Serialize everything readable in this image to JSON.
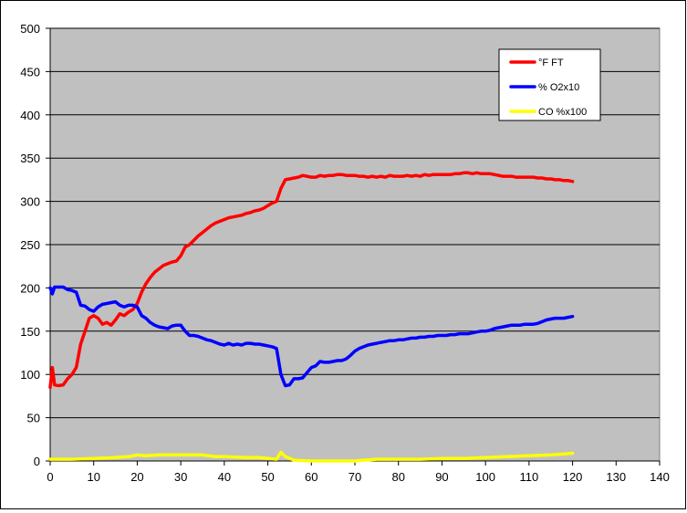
{
  "chart_data": {
    "type": "line",
    "title": "",
    "xlabel": "",
    "ylabel": "",
    "xlim": [
      0,
      140
    ],
    "ylim": [
      0,
      500
    ],
    "x_ticks": [
      0,
      10,
      20,
      30,
      40,
      50,
      60,
      70,
      80,
      90,
      100,
      110,
      120,
      130,
      140
    ],
    "y_ticks": [
      0,
      50,
      100,
      150,
      200,
      250,
      300,
      350,
      400,
      450,
      500
    ],
    "grid": "horizontal",
    "plot_background": "#c0c0c0",
    "legend_position": "top-right",
    "series": [
      {
        "name": "°F FT",
        "color": "#ff0000",
        "points": [
          [
            0,
            85
          ],
          [
            0.5,
            108
          ],
          [
            1,
            88
          ],
          [
            2,
            87
          ],
          [
            3,
            88
          ],
          [
            4,
            95
          ],
          [
            5,
            100
          ],
          [
            6,
            108
          ],
          [
            7,
            135
          ],
          [
            8,
            150
          ],
          [
            9,
            165
          ],
          [
            10,
            168
          ],
          [
            11,
            165
          ],
          [
            12,
            158
          ],
          [
            13,
            160
          ],
          [
            14,
            157
          ],
          [
            15,
            163
          ],
          [
            16,
            170
          ],
          [
            17,
            168
          ],
          [
            18,
            172
          ],
          [
            19,
            175
          ],
          [
            20,
            182
          ],
          [
            21,
            195
          ],
          [
            22,
            205
          ],
          [
            23,
            212
          ],
          [
            24,
            218
          ],
          [
            25,
            222
          ],
          [
            26,
            226
          ],
          [
            27,
            228
          ],
          [
            28,
            230
          ],
          [
            29,
            231
          ],
          [
            30,
            237
          ],
          [
            31,
            247
          ],
          [
            32,
            250
          ],
          [
            33,
            255
          ],
          [
            34,
            260
          ],
          [
            35,
            264
          ],
          [
            36,
            268
          ],
          [
            37,
            272
          ],
          [
            38,
            275
          ],
          [
            39,
            277
          ],
          [
            40,
            279
          ],
          [
            41,
            281
          ],
          [
            42,
            282
          ],
          [
            43,
            283
          ],
          [
            44,
            284
          ],
          [
            45,
            286
          ],
          [
            46,
            287
          ],
          [
            47,
            289
          ],
          [
            48,
            290
          ],
          [
            49,
            292
          ],
          [
            50,
            295
          ],
          [
            51,
            298
          ],
          [
            52,
            300
          ],
          [
            53,
            315
          ],
          [
            54,
            325
          ],
          [
            55,
            326
          ],
          [
            56,
            327
          ],
          [
            57,
            328
          ],
          [
            58,
            330
          ],
          [
            59,
            329
          ],
          [
            60,
            328
          ],
          [
            61,
            328
          ],
          [
            62,
            330
          ],
          [
            63,
            329
          ],
          [
            64,
            330
          ],
          [
            65,
            330
          ],
          [
            66,
            331
          ],
          [
            67,
            331
          ],
          [
            68,
            330
          ],
          [
            69,
            330
          ],
          [
            70,
            330
          ],
          [
            71,
            329
          ],
          [
            72,
            329
          ],
          [
            73,
            328
          ],
          [
            74,
            329
          ],
          [
            75,
            328
          ],
          [
            76,
            329
          ],
          [
            77,
            328
          ],
          [
            78,
            330
          ],
          [
            79,
            329
          ],
          [
            80,
            329
          ],
          [
            81,
            329
          ],
          [
            82,
            330
          ],
          [
            83,
            329
          ],
          [
            84,
            330
          ],
          [
            85,
            329
          ],
          [
            86,
            331
          ],
          [
            87,
            330
          ],
          [
            88,
            331
          ],
          [
            89,
            331
          ],
          [
            90,
            331
          ],
          [
            91,
            331
          ],
          [
            92,
            331
          ],
          [
            93,
            332
          ],
          [
            94,
            332
          ],
          [
            95,
            333
          ],
          [
            96,
            333
          ],
          [
            97,
            332
          ],
          [
            98,
            333
          ],
          [
            99,
            332
          ],
          [
            100,
            332
          ],
          [
            101,
            332
          ],
          [
            102,
            331
          ],
          [
            103,
            330
          ],
          [
            104,
            329
          ],
          [
            105,
            329
          ],
          [
            106,
            329
          ],
          [
            107,
            328
          ],
          [
            108,
            328
          ],
          [
            109,
            328
          ],
          [
            110,
            328
          ],
          [
            111,
            328
          ],
          [
            112,
            327
          ],
          [
            113,
            327
          ],
          [
            114,
            326
          ],
          [
            115,
            326
          ],
          [
            116,
            325
          ],
          [
            117,
            325
          ],
          [
            118,
            324
          ],
          [
            119,
            324
          ],
          [
            120,
            323
          ]
        ]
      },
      {
        "name": "% O2x10",
        "color": "#0000ff",
        "points": [
          [
            0,
            200
          ],
          [
            0.5,
            193
          ],
          [
            1,
            201
          ],
          [
            2,
            201
          ],
          [
            3,
            201
          ],
          [
            4,
            198
          ],
          [
            5,
            197
          ],
          [
            6,
            195
          ],
          [
            7,
            180
          ],
          [
            8,
            179
          ],
          [
            9,
            175
          ],
          [
            10,
            173
          ],
          [
            11,
            178
          ],
          [
            12,
            181
          ],
          [
            13,
            182
          ],
          [
            14,
            183
          ],
          [
            15,
            184
          ],
          [
            16,
            180
          ],
          [
            17,
            178
          ],
          [
            18,
            180
          ],
          [
            19,
            180
          ],
          [
            20,
            178
          ],
          [
            21,
            168
          ],
          [
            22,
            165
          ],
          [
            23,
            160
          ],
          [
            24,
            157
          ],
          [
            25,
            155
          ],
          [
            26,
            154
          ],
          [
            27,
            153
          ],
          [
            28,
            156
          ],
          [
            29,
            157
          ],
          [
            30,
            157
          ],
          [
            31,
            150
          ],
          [
            32,
            145
          ],
          [
            33,
            145
          ],
          [
            34,
            144
          ],
          [
            35,
            142
          ],
          [
            36,
            140
          ],
          [
            37,
            139
          ],
          [
            38,
            137
          ],
          [
            39,
            135
          ],
          [
            40,
            134
          ],
          [
            41,
            136
          ],
          [
            42,
            134
          ],
          [
            43,
            135
          ],
          [
            44,
            134
          ],
          [
            45,
            136
          ],
          [
            46,
            136
          ],
          [
            47,
            135
          ],
          [
            48,
            135
          ],
          [
            49,
            134
          ],
          [
            50,
            133
          ],
          [
            51,
            132
          ],
          [
            52,
            130
          ],
          [
            53,
            100
          ],
          [
            54,
            87
          ],
          [
            55,
            88
          ],
          [
            56,
            95
          ],
          [
            57,
            95
          ],
          [
            58,
            96
          ],
          [
            59,
            102
          ],
          [
            60,
            108
          ],
          [
            61,
            110
          ],
          [
            62,
            115
          ],
          [
            63,
            114
          ],
          [
            64,
            114
          ],
          [
            65,
            115
          ],
          [
            66,
            116
          ],
          [
            67,
            116
          ],
          [
            68,
            118
          ],
          [
            69,
            122
          ],
          [
            70,
            127
          ],
          [
            71,
            130
          ],
          [
            72,
            132
          ],
          [
            73,
            134
          ],
          [
            74,
            135
          ],
          [
            75,
            136
          ],
          [
            76,
            137
          ],
          [
            77,
            138
          ],
          [
            78,
            139
          ],
          [
            79,
            139
          ],
          [
            80,
            140
          ],
          [
            81,
            140
          ],
          [
            82,
            141
          ],
          [
            83,
            142
          ],
          [
            84,
            142
          ],
          [
            85,
            143
          ],
          [
            86,
            143
          ],
          [
            87,
            144
          ],
          [
            88,
            144
          ],
          [
            89,
            145
          ],
          [
            90,
            145
          ],
          [
            91,
            145
          ],
          [
            92,
            146
          ],
          [
            93,
            146
          ],
          [
            94,
            147
          ],
          [
            95,
            147
          ],
          [
            96,
            147
          ],
          [
            97,
            148
          ],
          [
            98,
            149
          ],
          [
            99,
            150
          ],
          [
            100,
            150
          ],
          [
            101,
            151
          ],
          [
            102,
            153
          ],
          [
            103,
            154
          ],
          [
            104,
            155
          ],
          [
            105,
            156
          ],
          [
            106,
            157
          ],
          [
            107,
            157
          ],
          [
            108,
            157
          ],
          [
            109,
            158
          ],
          [
            110,
            158
          ],
          [
            111,
            158
          ],
          [
            112,
            159
          ],
          [
            113,
            161
          ],
          [
            114,
            163
          ],
          [
            115,
            164
          ],
          [
            116,
            165
          ],
          [
            117,
            165
          ],
          [
            118,
            165
          ],
          [
            119,
            166
          ],
          [
            120,
            167
          ]
        ]
      },
      {
        "name": "CO %x100",
        "color": "#ffff00",
        "points": [
          [
            0,
            2
          ],
          [
            5,
            2
          ],
          [
            10,
            3
          ],
          [
            15,
            4
          ],
          [
            18,
            5
          ],
          [
            20,
            7
          ],
          [
            22,
            6
          ],
          [
            25,
            7
          ],
          [
            30,
            7
          ],
          [
            33,
            7
          ],
          [
            35,
            7
          ],
          [
            38,
            5
          ],
          [
            40,
            5
          ],
          [
            45,
            4
          ],
          [
            48,
            4
          ],
          [
            50,
            3
          ],
          [
            52,
            2
          ],
          [
            53,
            10
          ],
          [
            54,
            5
          ],
          [
            56,
            1
          ],
          [
            60,
            0
          ],
          [
            65,
            0
          ],
          [
            70,
            0
          ],
          [
            72,
            1
          ],
          [
            75,
            2
          ],
          [
            80,
            2
          ],
          [
            85,
            2
          ],
          [
            90,
            3
          ],
          [
            95,
            3
          ],
          [
            100,
            4
          ],
          [
            105,
            5
          ],
          [
            110,
            6
          ],
          [
            115,
            7
          ],
          [
            118,
            8
          ],
          [
            120,
            9
          ]
        ]
      }
    ]
  }
}
